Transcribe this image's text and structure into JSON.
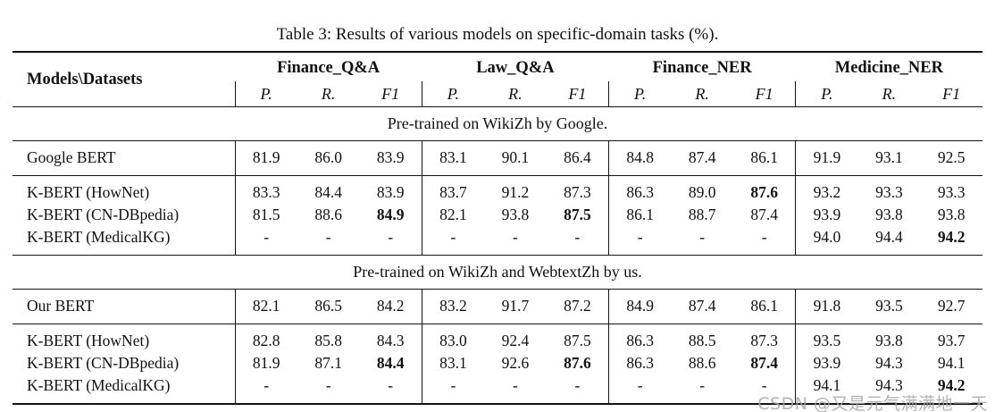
{
  "title": "Table 3: Results of various models on specific-domain tasks (%).",
  "header": {
    "models_datasets": "Models\\Datasets",
    "groups": [
      {
        "label": "Finance_Q&A",
        "cols": [
          "P.",
          "R.",
          "F1"
        ]
      },
      {
        "label": "Law_Q&A",
        "cols": [
          "P.",
          "R.",
          "F1"
        ]
      },
      {
        "label": "Finance_NER",
        "cols": [
          "P.",
          "R.",
          "F1"
        ]
      },
      {
        "label": "Medicine_NER",
        "cols": [
          "P.",
          "R.",
          "F1"
        ]
      }
    ]
  },
  "sections": [
    {
      "label": "Pre-trained on WikiZh by Google.",
      "groups": [
        {
          "rows": [
            {
              "model": "Google BERT",
              "values": [
                "81.9",
                "86.0",
                "83.9",
                "83.1",
                "90.1",
                "86.4",
                "84.8",
                "87.4",
                "86.1",
                "91.9",
                "93.1",
                "92.5"
              ],
              "bold": []
            }
          ]
        },
        {
          "rows": [
            {
              "model": "K-BERT (HowNet)",
              "values": [
                "83.3",
                "84.4",
                "83.9",
                "83.7",
                "91.2",
                "87.3",
                "86.3",
                "89.0",
                "87.6",
                "93.2",
                "93.3",
                "93.3"
              ],
              "bold": [
                8
              ]
            },
            {
              "model": "K-BERT (CN-DBpedia)",
              "values": [
                "81.5",
                "88.6",
                "84.9",
                "82.1",
                "93.8",
                "87.5",
                "86.1",
                "88.7",
                "87.4",
                "93.9",
                "93.8",
                "93.8"
              ],
              "bold": [
                2,
                5
              ]
            },
            {
              "model": "K-BERT (MedicalKG)",
              "values": [
                "-",
                "-",
                "-",
                "-",
                "-",
                "-",
                "-",
                "-",
                "-",
                "94.0",
                "94.4",
                "94.2"
              ],
              "bold": [
                11
              ]
            }
          ]
        }
      ]
    },
    {
      "label": "Pre-trained on WikiZh and WebtextZh by us.",
      "groups": [
        {
          "rows": [
            {
              "model": "Our BERT",
              "values": [
                "82.1",
                "86.5",
                "84.2",
                "83.2",
                "91.7",
                "87.2",
                "84.9",
                "87.4",
                "86.1",
                "91.8",
                "93.5",
                "92.7"
              ],
              "bold": []
            }
          ]
        },
        {
          "rows": [
            {
              "model": "K-BERT (HowNet)",
              "values": [
                "82.8",
                "85.8",
                "84.3",
                "83.0",
                "92.4",
                "87.5",
                "86.3",
                "88.5",
                "87.3",
                "93.5",
                "93.8",
                "93.7"
              ],
              "bold": []
            },
            {
              "model": "K-BERT (CN-DBpedia)",
              "values": [
                "81.9",
                "87.1",
                "84.4",
                "83.1",
                "92.6",
                "87.6",
                "86.3",
                "88.6",
                "87.4",
                "93.9",
                "94.3",
                "94.1"
              ],
              "bold": [
                2,
                5,
                8
              ]
            },
            {
              "model": "K-BERT (MedicalKG)",
              "values": [
                "-",
                "-",
                "-",
                "-",
                "-",
                "-",
                "-",
                "-",
                "-",
                "94.1",
                "94.3",
                "94.2"
              ],
              "bold": [
                11
              ]
            }
          ]
        }
      ]
    }
  ],
  "watermark": "CSDN @又是元气满满地一天",
  "colors": {
    "text": "#111111",
    "rule": "#141414",
    "watermark": "#a4a4a4"
  }
}
